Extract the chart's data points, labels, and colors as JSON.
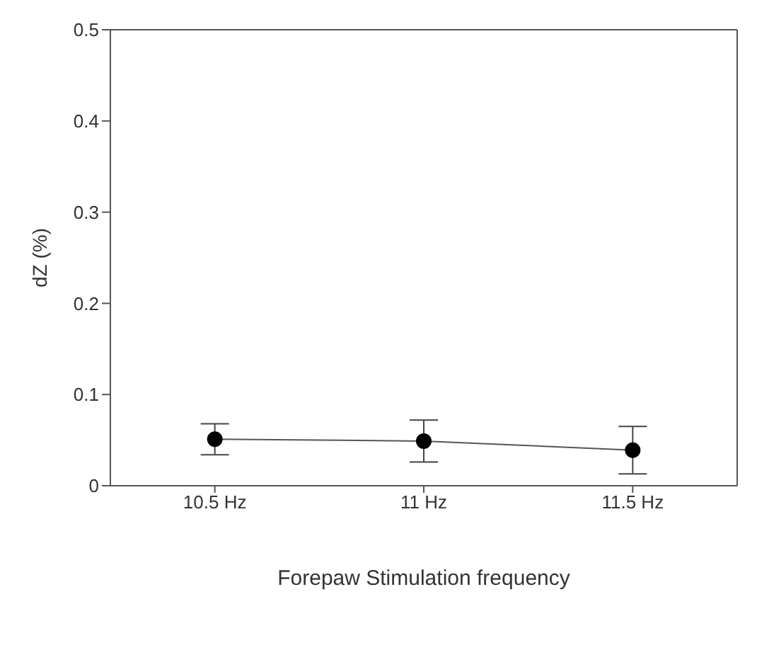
{
  "chart_data": {
    "type": "line",
    "xlabel": "Forepaw Stimulation frequency",
    "ylabel": "dZ (%)",
    "categories": [
      "10.5 Hz",
      "11 Hz",
      "11.5 Hz"
    ],
    "series": [
      {
        "color": "#000000",
        "values": [
          0.051,
          0.049,
          0.039
        ],
        "errors": [
          [
            0.034,
            0.068
          ],
          [
            0.026,
            0.072
          ],
          [
            0.013,
            0.065
          ]
        ]
      }
    ],
    "ylim": [
      0,
      0.5
    ],
    "yticks": [
      0,
      0.1,
      0.2,
      0.3,
      0.4,
      0.5
    ],
    "marker": "circle",
    "line_style": "solid"
  }
}
